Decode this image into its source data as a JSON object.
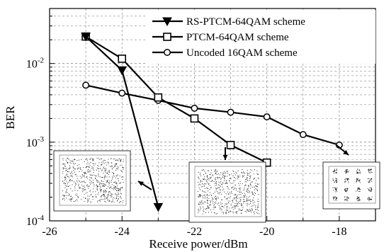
{
  "chart_data": {
    "type": "line",
    "title": "",
    "xlabel": "Receive power/dBm",
    "ylabel": "BER",
    "xlim": [
      -26,
      -17
    ],
    "ylim": [
      0.0001,
      0.05
    ],
    "y_scale": "log",
    "grid": true,
    "legend_position": "top-right",
    "x_ticks": [
      "-26",
      "-24",
      "-22",
      "-20",
      "-18"
    ],
    "y_ticks": [
      {
        "base": "10",
        "exp": "-4",
        "value": 0.0001
      },
      {
        "base": "10",
        "exp": "-3",
        "value": 0.001
      },
      {
        "base": "10",
        "exp": "-2",
        "value": 0.01
      }
    ],
    "series": [
      {
        "name": "RS-PTCM-64QAM scheme",
        "marker": "triangle-down-filled",
        "x": [
          -25,
          -24,
          -23
        ],
        "y": [
          0.022,
          0.0082,
          0.00015
        ]
      },
      {
        "name": "PTCM-64QAM scheme",
        "marker": "square-open",
        "x": [
          -25,
          -24,
          -23,
          -22,
          -21,
          -20
        ],
        "y": [
          0.022,
          0.0115,
          0.0037,
          0.002,
          0.00092,
          0.00055
        ]
      },
      {
        "name": "Uncoded 16QAM scheme",
        "marker": "circle-open",
        "x": [
          -25,
          -24,
          -23,
          -22,
          -21,
          -20,
          -19,
          -18
        ],
        "y": [
          0.0053,
          0.0042,
          0.0034,
          0.0027,
          0.0024,
          0.0021,
          0.00125,
          0.00092
        ]
      }
    ],
    "insets": [
      {
        "name": "constellation-rs-ptcm",
        "pattern": "dense-noisy"
      },
      {
        "name": "constellation-ptcm",
        "pattern": "dense-noisy"
      },
      {
        "name": "constellation-16qam",
        "pattern": "4x4-clusters"
      }
    ],
    "colors": {
      "line": "#000000",
      "grid": "#8a8a8a",
      "background": "#ffffff"
    }
  }
}
